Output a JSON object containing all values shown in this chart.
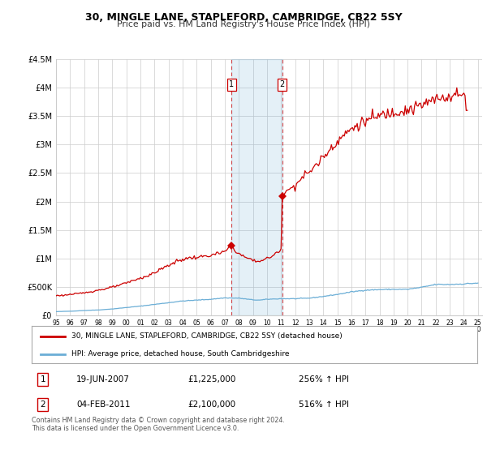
{
  "title": "30, MINGLE LANE, STAPLEFORD, CAMBRIDGE, CB22 5SY",
  "subtitle": "Price paid vs. HM Land Registry's House Price Index (HPI)",
  "legend_line1": "30, MINGLE LANE, STAPLEFORD, CAMBRIDGE, CB22 5SY (detached house)",
  "legend_line2": "HPI: Average price, detached house, South Cambridgeshire",
  "footnote": "Contains HM Land Registry data © Crown copyright and database right 2024.\nThis data is licensed under the Open Government Licence v3.0.",
  "transaction1_date": "19-JUN-2007",
  "transaction1_price": "£1,225,000",
  "transaction1_hpi": "256% ↑ HPI",
  "transaction2_date": "04-FEB-2011",
  "transaction2_price": "£2,100,000",
  "transaction2_hpi": "516% ↑ HPI",
  "hpi_color": "#6baed6",
  "price_color": "#cc0000",
  "background_color": "#f0f0f0",
  "grid_color": "#cccccc",
  "ylim": [
    0,
    4500000
  ],
  "yticks": [
    0,
    500000,
    1000000,
    1500000,
    2000000,
    2500000,
    3000000,
    3500000,
    4000000,
    4500000
  ],
  "ytick_labels": [
    "£0",
    "£500K",
    "£1M",
    "£1.5M",
    "£2M",
    "£2.5M",
    "£3M",
    "£3.5M",
    "£4M",
    "£4.5M"
  ],
  "shade_start": 2007.47,
  "shade_end": 2011.09,
  "marker1_x": 2007.47,
  "marker1_y": 1225000,
  "marker2_x": 2011.09,
  "marker2_y": 2100000,
  "xlim_start": 1995.0,
  "xlim_end": 2025.3
}
